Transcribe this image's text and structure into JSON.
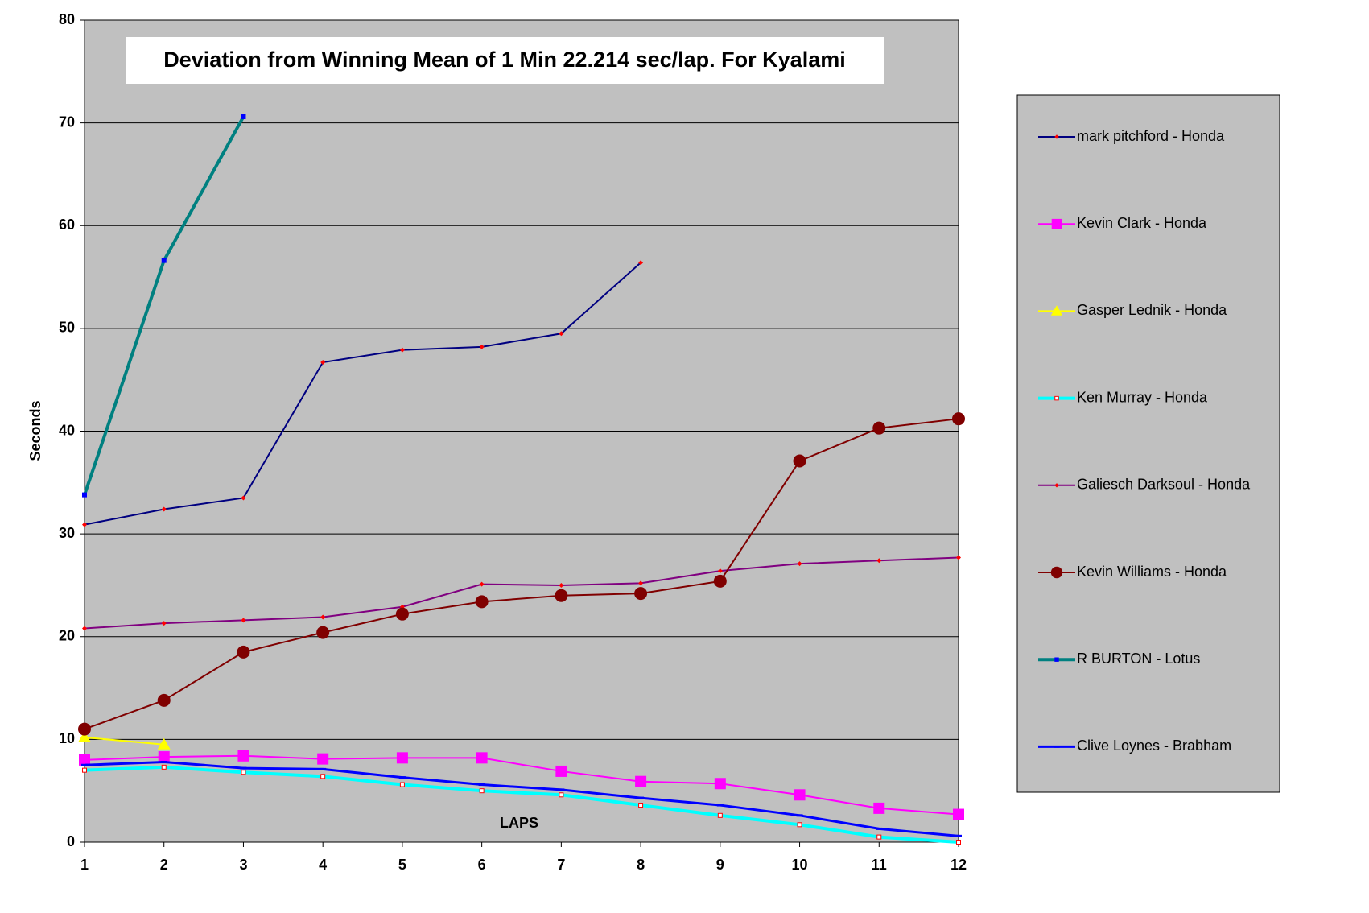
{
  "chart_data": {
    "type": "line",
    "title": "Deviation from Winning Mean of 1 Min 22.214 sec/lap. For Kyalami",
    "x_label": "LAPS",
    "y_label": "Seconds",
    "x": [
      1,
      2,
      3,
      4,
      5,
      6,
      7,
      8,
      9,
      10,
      11,
      12
    ],
    "xlim": [
      1,
      12
    ],
    "xticks": [
      1,
      2,
      3,
      4,
      5,
      6,
      7,
      8,
      9,
      10,
      11,
      12
    ],
    "ylim": [
      0,
      80
    ],
    "yticks": [
      0,
      10,
      20,
      30,
      40,
      50,
      60,
      70,
      80
    ],
    "grid": true,
    "legend": "right",
    "series": [
      {
        "name": "mark pitchford - Honda",
        "color": "#000080",
        "width": 2,
        "marker": "diamond",
        "marker_color": "#ff0000",
        "values": [
          30.9,
          32.4,
          33.5,
          46.7,
          47.9,
          48.2,
          49.5,
          56.4,
          null,
          null,
          null,
          null
        ]
      },
      {
        "name": "Kevin Clark - Honda",
        "color": "#ff00ff",
        "width": 2,
        "marker": "square",
        "marker_color": "#ff00ff",
        "values": [
          8.0,
          8.3,
          8.4,
          8.1,
          8.2,
          8.2,
          6.9,
          5.9,
          5.7,
          4.6,
          3.3,
          2.7
        ]
      },
      {
        "name": "Gasper Lednik - Honda",
        "color": "#ffff00",
        "width": 2,
        "marker": "triangle",
        "marker_color": "#ffff00",
        "values": [
          10.2,
          9.5,
          null,
          null,
          null,
          null,
          null,
          null,
          null,
          null,
          null,
          null
        ]
      },
      {
        "name": "Ken Murray - Honda",
        "color": "#00ffff",
        "width": 4,
        "marker": "hollow-square",
        "marker_color": "#ff0000",
        "values": [
          7.0,
          7.3,
          6.8,
          6.4,
          5.6,
          5.0,
          4.6,
          3.6,
          2.6,
          1.7,
          0.5,
          0
        ]
      },
      {
        "name": "Galiesch Darksoul - Honda",
        "color": "#800080",
        "width": 2,
        "marker": "diamond",
        "marker_color": "#ff0000",
        "values": [
          20.8,
          21.3,
          21.6,
          21.9,
          22.9,
          25.1,
          25.0,
          25.2,
          26.4,
          27.1,
          27.4,
          27.7
        ]
      },
      {
        "name": "Kevin Williams - Honda",
        "color": "#800000",
        "width": 2,
        "marker": "circle",
        "marker_color": "#800000",
        "values": [
          11.0,
          13.8,
          18.5,
          20.4,
          22.2,
          23.4,
          24.0,
          24.2,
          25.4,
          37.1,
          40.3,
          41.2
        ]
      },
      {
        "name": "R BURTON - Lotus",
        "color": "#008080",
        "width": 4,
        "marker": "small-square",
        "marker_color": "#0000ff",
        "values": [
          33.8,
          56.6,
          70.6,
          null,
          null,
          null,
          null,
          null,
          null,
          null,
          null,
          null
        ]
      },
      {
        "name": "Clive Loynes - Brabham",
        "color": "#0000ff",
        "width": 3,
        "marker": "dash",
        "marker_color": "#0000ff",
        "values": [
          7.5,
          7.8,
          7.2,
          7.1,
          6.3,
          5.6,
          5.1,
          4.3,
          3.6,
          2.6,
          1.3,
          0.6
        ]
      }
    ]
  }
}
